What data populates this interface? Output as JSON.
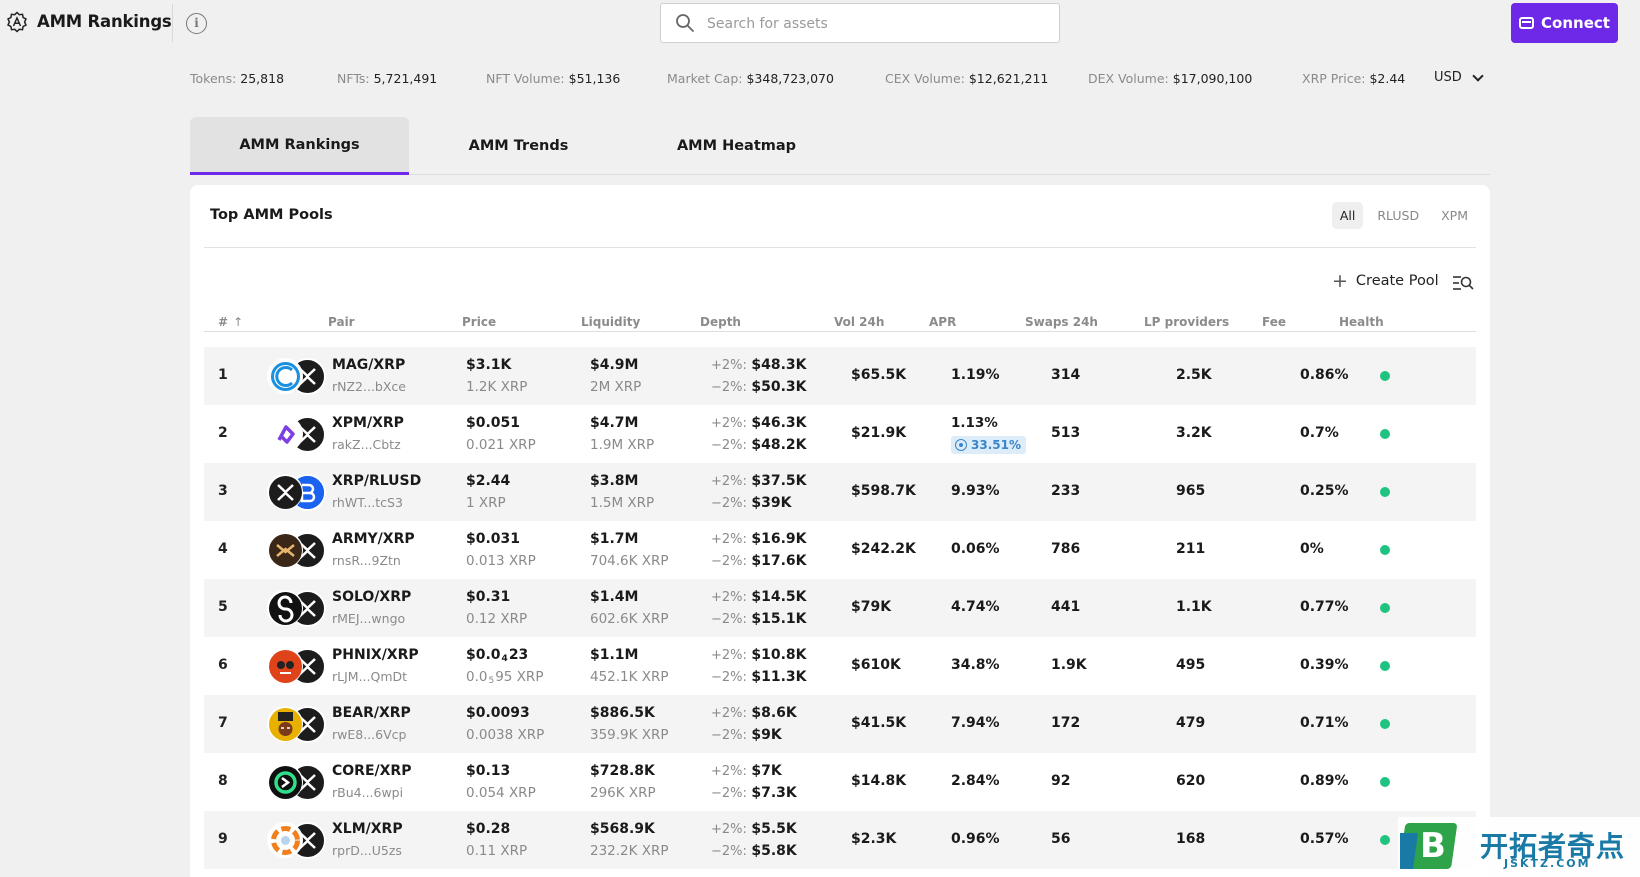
{
  "header": {
    "app_title": "AMM Rankings",
    "search_placeholder": "Search for assets",
    "connect_label": "Connect",
    "info_glyph": "i"
  },
  "stats": [
    {
      "key": "Tokens:",
      "value": "25,818"
    },
    {
      "key": "NFTs:",
      "value": "5,721,491"
    },
    {
      "key": "NFT Volume:",
      "value": "$51,136"
    },
    {
      "key": "Market Cap:",
      "value": "$348,723,070"
    },
    {
      "key": "CEX Volume:",
      "value": "$12,621,211"
    },
    {
      "key": "DEX Volume:",
      "value": "$17,090,100"
    },
    {
      "key": "XRP Price:",
      "value": "$2.44"
    }
  ],
  "currency": "USD",
  "tabs": [
    {
      "label": "AMM Rankings",
      "active": true
    },
    {
      "label": "AMM Trends",
      "active": false
    },
    {
      "label": "AMM Heatmap",
      "active": false
    }
  ],
  "card": {
    "title": "Top AMM Pools",
    "filters": [
      {
        "label": "All",
        "active": true
      },
      {
        "label": "RLUSD",
        "active": false
      },
      {
        "label": "XPM",
        "active": false
      }
    ],
    "create_pool_label": "Create Pool",
    "plus_glyph": "+",
    "sort_glyph": "↑"
  },
  "columns": [
    "#",
    "Pair",
    "Price",
    "Liquidity",
    "Depth",
    "Vol 24h",
    "APR",
    "Swaps 24h",
    "LP providers",
    "Fee",
    "Health"
  ],
  "depth_labels": {
    "up": "+2%:",
    "down": "−2%:"
  },
  "rows": [
    {
      "rank": "1",
      "pair": "MAG/XRP",
      "addr": "rNZ2...bXce",
      "price": "$3.1K",
      "price_xrp": "1.2K XRP",
      "liquidity": "$4.9M",
      "liquidity_xrp": "2M XRP",
      "depth_up": "$48.3K",
      "depth_down": "$50.3K",
      "vol": "$65.5K",
      "apr": "1.19%",
      "apr_bonus": "",
      "swaps": "314",
      "lp": "2.5K",
      "fee": "0.86%",
      "icon": "mag",
      "icon_color": "#1b8fe0",
      "health_color": "#1ec380"
    },
    {
      "rank": "2",
      "pair": "XPM/XRP",
      "addr": "rakZ...Cbtz",
      "price": "$0.051",
      "price_xrp": "0.021 XRP",
      "liquidity": "$4.7M",
      "liquidity_xrp": "1.9M XRP",
      "depth_up": "$46.3K",
      "depth_down": "$48.2K",
      "vol": "$21.9K",
      "apr": "1.13%",
      "apr_bonus": "33.51%",
      "swaps": "513",
      "lp": "3.2K",
      "fee": "0.7%",
      "icon": "xpm",
      "icon_color": "#7b3fe4",
      "health_color": "#1ec380"
    },
    {
      "rank": "3",
      "pair": "XRP/RLUSD",
      "addr": "rhWT...tcS3",
      "price": "$2.44",
      "price_xrp": "1 XRP",
      "liquidity": "$3.8M",
      "liquidity_xrp": "1.5M XRP",
      "depth_up": "$37.5K",
      "depth_down": "$39K",
      "vol": "$598.7K",
      "apr": "9.93%",
      "apr_bonus": "",
      "swaps": "233",
      "lp": "965",
      "fee": "0.25%",
      "icon": "xrp",
      "icon_color": "#1c1c1c",
      "health_color": "#1ec380"
    },
    {
      "rank": "4",
      "pair": "ARMY/XRP",
      "addr": "rnsR...9Ztn",
      "price": "$0.031",
      "price_xrp": "0.013 XRP",
      "liquidity": "$1.7M",
      "liquidity_xrp": "704.6K XRP",
      "depth_up": "$16.9K",
      "depth_down": "$17.6K",
      "vol": "$242.2K",
      "apr": "0.06%",
      "apr_bonus": "",
      "swaps": "786",
      "lp": "211",
      "fee": "0%",
      "icon": "army",
      "icon_color": "#3a2718",
      "health_color": "#1ec380"
    },
    {
      "rank": "5",
      "pair": "SOLO/XRP",
      "addr": "rMEJ...wngo",
      "price": "$0.31",
      "price_xrp": "0.12 XRP",
      "liquidity": "$1.4M",
      "liquidity_xrp": "602.6K XRP",
      "depth_up": "$14.5K",
      "depth_down": "$15.1K",
      "vol": "$79K",
      "apr": "4.74%",
      "apr_bonus": "",
      "swaps": "441",
      "lp": "1.1K",
      "fee": "0.77%",
      "icon": "solo",
      "icon_color": "#111111",
      "health_color": "#1ec380"
    },
    {
      "rank": "6",
      "pair": "PHNIX/XRP",
      "addr": "rLJM...QmDt",
      "price_pre": "$0.0",
      "price_sub": "4",
      "price_post": "23",
      "price_xrp_pre": "0.0",
      "price_xrp_sub": "5",
      "price_xrp_post": "95 XRP",
      "liquidity": "$1.1M",
      "liquidity_xrp": "452.1K XRP",
      "depth_up": "$10.8K",
      "depth_down": "$11.3K",
      "vol": "$610K",
      "apr": "34.8%",
      "apr_bonus": "",
      "swaps": "1.9K",
      "lp": "495",
      "fee": "0.39%",
      "icon": "phnix",
      "icon_color": "#e0431a",
      "health_color": "#1ec380"
    },
    {
      "rank": "7",
      "pair": "BEAR/XRP",
      "addr": "rwE8...6Vcp",
      "price": "$0.0093",
      "price_xrp": "0.0038 XRP",
      "liquidity": "$886.5K",
      "liquidity_xrp": "359.9K XRP",
      "depth_up": "$8.6K",
      "depth_down": "$9K",
      "vol": "$41.5K",
      "apr": "7.94%",
      "apr_bonus": "",
      "swaps": "172",
      "lp": "479",
      "fee": "0.71%",
      "icon": "bear",
      "icon_color": "#e8b100",
      "health_color": "#1ec380"
    },
    {
      "rank": "8",
      "pair": "CORE/XRP",
      "addr": "rBu4...6wpi",
      "price": "$0.13",
      "price_xrp": "0.054 XRP",
      "liquidity": "$728.8K",
      "liquidity_xrp": "296K XRP",
      "depth_up": "$7K",
      "depth_down": "$7.3K",
      "vol": "$14.8K",
      "apr": "2.84%",
      "apr_bonus": "",
      "swaps": "92",
      "lp": "620",
      "fee": "0.89%",
      "icon": "core",
      "icon_color": "#0f0f0f",
      "health_color": "#1ec380"
    },
    {
      "rank": "9",
      "pair": "XLM/XRP",
      "addr": "rprD...U5zs",
      "price": "$0.28",
      "price_xrp": "0.11 XRP",
      "liquidity": "$568.9K",
      "liquidity_xrp": "232.2K XRP",
      "depth_up": "$5.5K",
      "depth_down": "$5.8K",
      "vol": "$2.3K",
      "apr": "0.96%",
      "apr_bonus": "",
      "swaps": "56",
      "lp": "168",
      "fee": "0.57%",
      "icon": "xlm",
      "icon_color": "#f07f1e",
      "health_color": "#1ec380"
    }
  ],
  "watermark": {
    "text": "开拓者奇点",
    "sub": "JSKTZ.COM",
    "logo_letter": "B"
  },
  "colors": {
    "accent": "#6d28e8",
    "health_green": "#1ec380",
    "apr_badge": "#3b86c9"
  }
}
